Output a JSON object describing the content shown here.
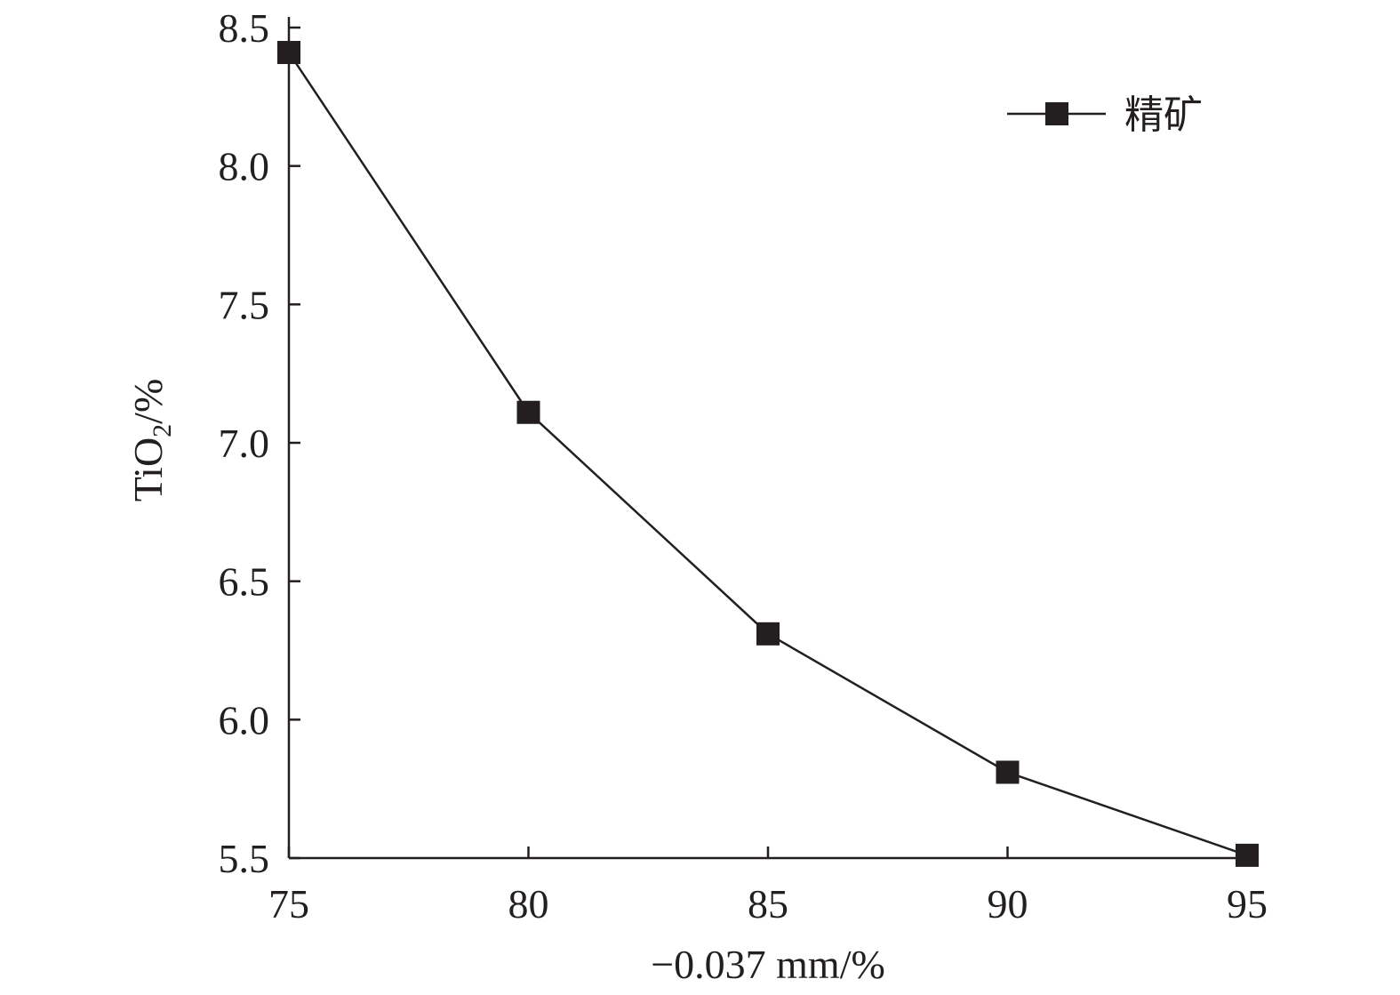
{
  "chart_data": {
    "type": "line",
    "x": [
      75,
      80,
      85,
      90,
      95
    ],
    "series": [
      {
        "name": "精矿",
        "values": [
          8.41,
          7.11,
          6.31,
          5.81,
          5.51
        ]
      }
    ],
    "xlabel": "−0.037 mm/%",
    "ylabel_main": "TiO",
    "ylabel_sub": "2",
    "ylabel_suffix": "/%",
    "xlim": [
      75,
      95
    ],
    "ylim": [
      5.5,
      8.5
    ],
    "xticks": [
      75,
      80,
      85,
      90,
      95
    ],
    "yticks": [
      5.5,
      6.0,
      6.5,
      7.0,
      7.5,
      8.0,
      8.5
    ],
    "xtick_labels": [
      "75",
      "80",
      "85",
      "90",
      "95"
    ],
    "ytick_labels": [
      "5.5",
      "6.0",
      "6.5",
      "7.0",
      "7.5",
      "8.0",
      "8.5"
    ],
    "grid": false,
    "legend_position": "top-right",
    "marker": "square",
    "color": "#231f20"
  }
}
